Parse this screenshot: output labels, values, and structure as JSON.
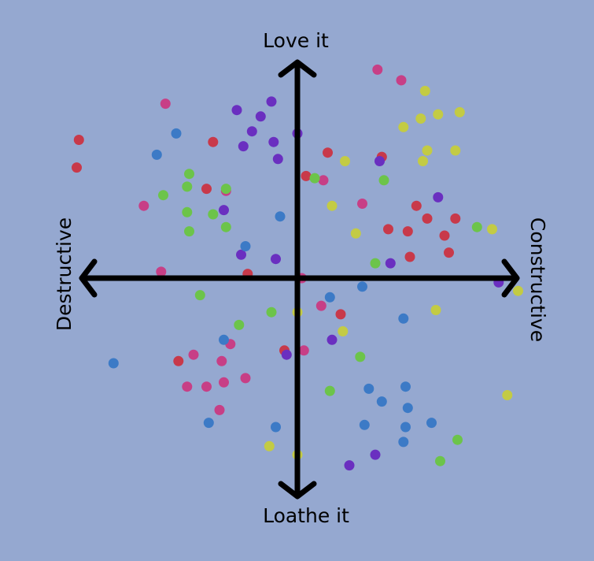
{
  "chart_data": {
    "type": "scatter",
    "title": "",
    "axis_labels": {
      "top": "Love it",
      "bottom": "Loathe it",
      "left": "Destructive",
      "right": "Constructive"
    },
    "xlim": [
      -10,
      10
    ],
    "ylim": [
      -10,
      10
    ],
    "grid": false,
    "legend": "none",
    "series": [
      {
        "color": "#c8394a",
        "points": [
          [
            -10.1,
            6.5
          ],
          [
            -10.2,
            5.2
          ],
          [
            -3.9,
            6.4
          ],
          [
            -4.2,
            4.2
          ],
          [
            0.4,
            4.8
          ],
          [
            1.4,
            5.9
          ],
          [
            3.9,
            5.7
          ],
          [
            5.5,
            3.4
          ],
          [
            6.0,
            2.8
          ],
          [
            7.3,
            2.8
          ],
          [
            4.2,
            2.3
          ],
          [
            5.1,
            2.2
          ],
          [
            6.8,
            2.0
          ],
          [
            5.2,
            1.0
          ],
          [
            7.0,
            1.2
          ],
          [
            -2.3,
            0.2
          ],
          [
            2.0,
            -1.7
          ],
          [
            -0.6,
            -3.4
          ],
          [
            -5.5,
            -3.9
          ]
        ]
      },
      {
        "color": "#c73f86",
        "points": [
          [
            3.7,
            9.8
          ],
          [
            4.8,
            9.3
          ],
          [
            -6.1,
            8.2
          ],
          [
            1.2,
            4.6
          ],
          [
            -3.3,
            4.1
          ],
          [
            -7.1,
            3.4
          ],
          [
            3.0,
            3.5
          ],
          [
            -6.3,
            0.3
          ],
          [
            0.2,
            0.0
          ],
          [
            1.1,
            -1.3
          ],
          [
            -3.1,
            -3.1
          ],
          [
            -4.8,
            -3.6
          ],
          [
            0.3,
            -3.4
          ],
          [
            -3.5,
            -3.9
          ],
          [
            -2.4,
            -4.7
          ],
          [
            -5.1,
            -5.1
          ],
          [
            -4.2,
            -5.1
          ],
          [
            -3.4,
            -4.9
          ],
          [
            -3.6,
            -6.2
          ]
        ]
      },
      {
        "color": "#6a2fc0",
        "points": [
          [
            -2.8,
            7.9
          ],
          [
            -1.2,
            8.3
          ],
          [
            -1.7,
            7.6
          ],
          [
            -2.1,
            6.9
          ],
          [
            0.0,
            6.8
          ],
          [
            -2.5,
            6.2
          ],
          [
            -1.1,
            6.4
          ],
          [
            -0.9,
            5.6
          ],
          [
            3.8,
            5.5
          ],
          [
            6.5,
            3.8
          ],
          [
            -3.4,
            3.2
          ],
          [
            -2.6,
            1.1
          ],
          [
            -1.0,
            0.9
          ],
          [
            4.3,
            0.7
          ],
          [
            9.3,
            -0.2
          ],
          [
            1.6,
            -2.9
          ],
          [
            -0.5,
            -3.6
          ],
          [
            3.6,
            -8.3
          ],
          [
            2.4,
            -8.8
          ]
        ]
      },
      {
        "color": "#3c7ac6",
        "points": [
          [
            -5.6,
            6.8
          ],
          [
            -6.5,
            5.8
          ],
          [
            -0.8,
            2.9
          ],
          [
            -2.4,
            1.5
          ],
          [
            3.0,
            -0.4
          ],
          [
            1.5,
            -0.9
          ],
          [
            4.9,
            -1.9
          ],
          [
            -3.4,
            -2.9
          ],
          [
            -8.5,
            -4.0
          ],
          [
            3.3,
            -5.2
          ],
          [
            5.0,
            -5.1
          ],
          [
            3.9,
            -5.8
          ],
          [
            5.1,
            -6.1
          ],
          [
            -4.1,
            -6.8
          ],
          [
            -1.0,
            -7.0
          ],
          [
            3.1,
            -6.9
          ],
          [
            5.0,
            -7.0
          ],
          [
            6.2,
            -6.8
          ],
          [
            4.9,
            -7.7
          ]
        ]
      },
      {
        "color": "#6cc44a",
        "points": [
          [
            -5.0,
            4.9
          ],
          [
            -5.1,
            4.3
          ],
          [
            -6.2,
            3.9
          ],
          [
            -3.3,
            4.2
          ],
          [
            0.8,
            4.7
          ],
          [
            4.0,
            4.6
          ],
          [
            -5.1,
            3.1
          ],
          [
            -3.9,
            3.0
          ],
          [
            -5.0,
            2.2
          ],
          [
            -3.3,
            2.4
          ],
          [
            8.3,
            2.4
          ],
          [
            3.6,
            0.7
          ],
          [
            -4.5,
            -0.8
          ],
          [
            -1.2,
            -1.6
          ],
          [
            -2.7,
            -2.2
          ],
          [
            2.9,
            -3.7
          ],
          [
            1.5,
            -5.3
          ],
          [
            7.4,
            -7.6
          ],
          [
            6.6,
            -8.6
          ]
        ]
      },
      {
        "color": "#c3cb44",
        "points": [
          [
            5.9,
            8.8
          ],
          [
            5.7,
            7.5
          ],
          [
            6.5,
            7.7
          ],
          [
            7.5,
            7.8
          ],
          [
            4.9,
            7.1
          ],
          [
            6.0,
            6.0
          ],
          [
            7.3,
            6.0
          ],
          [
            2.2,
            5.5
          ],
          [
            5.8,
            5.5
          ],
          [
            1.6,
            3.4
          ],
          [
            2.7,
            2.1
          ],
          [
            9.0,
            2.3
          ],
          [
            10.2,
            -0.6
          ],
          [
            0.0,
            -1.6
          ],
          [
            6.4,
            -1.5
          ],
          [
            2.1,
            -2.5
          ],
          [
            9.7,
            -5.5
          ],
          [
            -1.3,
            -7.9
          ],
          [
            0.0,
            -8.3
          ]
        ]
      }
    ]
  }
}
